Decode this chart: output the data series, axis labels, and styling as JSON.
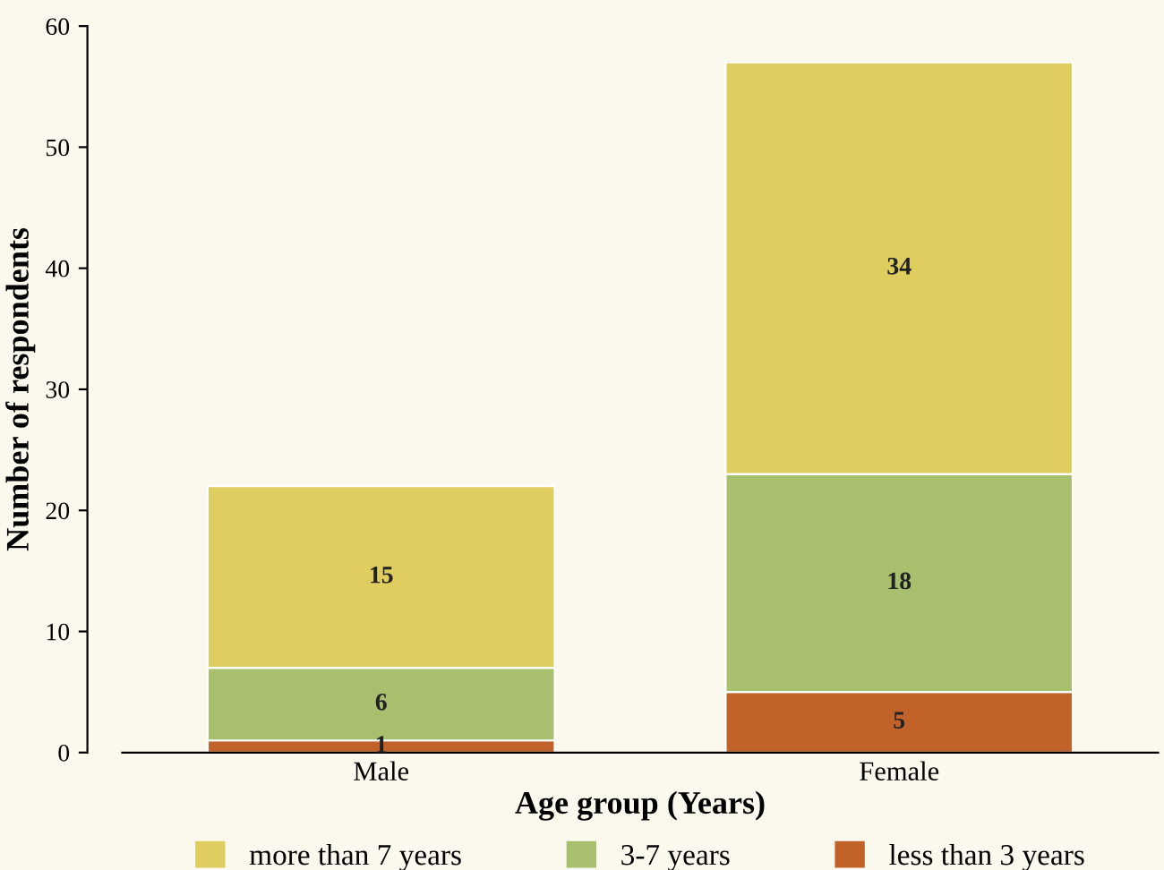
{
  "chart_data": {
    "type": "bar",
    "stacked": true,
    "xlabel": "Age group (Years)",
    "ylabel": "Number of respondents",
    "categories": [
      "Male",
      "Female"
    ],
    "series": [
      {
        "name": "less than 3 years",
        "color": "#c0622a",
        "values": [
          1,
          5
        ]
      },
      {
        "name": "3-7 years",
        "color": "#a8bf6e",
        "values": [
          6,
          18
        ]
      },
      {
        "name": "more than 7 years",
        "color": "#e0cd60",
        "values": [
          15,
          34
        ]
      }
    ],
    "ylim": [
      0,
      60
    ],
    "yticks": [
      0,
      10,
      20,
      30,
      40,
      50,
      60
    ],
    "grid": false,
    "legend": "bottom",
    "data_labels": true
  }
}
